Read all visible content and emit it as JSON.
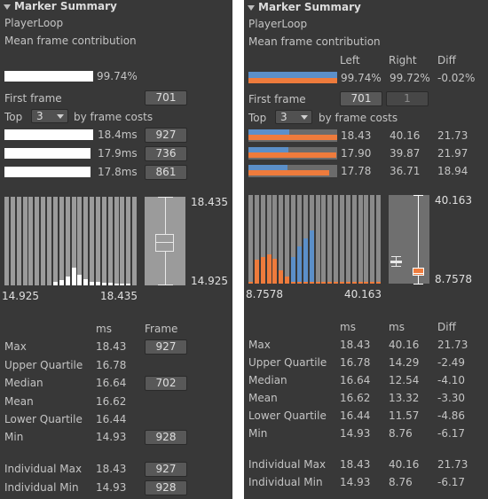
{
  "colors": {
    "panel_bg": "#383838",
    "button_bg": "#585858",
    "white_bar": "#ffffff",
    "blue": "#5b8fc9",
    "orange": "#ee7b3c",
    "grey_bar": "#6b6b6b",
    "hist_bg": "#9b9b9b"
  },
  "left": {
    "header": "Marker Summary",
    "marker_name": "PlayerLoop",
    "contribution_label": "Mean frame contribution",
    "contribution_value": "99.74%",
    "contribution_fraction": 0.9974,
    "first_frame_label": "First frame",
    "first_frame_value": "701",
    "top_label": "Top",
    "top_value": "3",
    "by_frame_costs_label": "by frame costs",
    "top_frames": [
      {
        "time": "18.4ms",
        "frame": "927",
        "fraction": 1.0
      },
      {
        "time": "17.9ms",
        "frame": "736",
        "fraction": 0.973
      },
      {
        "time": "17.8ms",
        "frame": "861",
        "fraction": 0.966
      }
    ],
    "hist_max_label": "18.435",
    "hist_min_label": "14.925",
    "hist_x_min": "14.925",
    "hist_x_max": "18.435",
    "hist_values": [
      0,
      0,
      0,
      0,
      0,
      0,
      0,
      0,
      0.04,
      0.06,
      0.1,
      0.2,
      0.12,
      0.07,
      0.04,
      0.04,
      0.03,
      0.03,
      0.02,
      0.02,
      0.01,
      0
    ],
    "box": {
      "min": 14.925,
      "q1": 16.44,
      "median": 16.64,
      "q3": 16.78,
      "max": 18.435,
      "range": [
        14.925,
        18.435
      ]
    },
    "stats_header_ms": "ms",
    "stats_header_frame": "Frame",
    "stats": [
      {
        "label": "Max",
        "ms": "18.43",
        "frame": "927"
      },
      {
        "label": "Upper Quartile",
        "ms": "16.78",
        "frame": ""
      },
      {
        "label": "Median",
        "ms": "16.64",
        "frame": "702"
      },
      {
        "label": "Mean",
        "ms": "16.62",
        "frame": ""
      },
      {
        "label": "Lower Quartile",
        "ms": "16.44",
        "frame": ""
      },
      {
        "label": "Min",
        "ms": "14.93",
        "frame": "928"
      }
    ],
    "individual": [
      {
        "label": "Individual Max",
        "ms": "18.43",
        "frame": "927"
      },
      {
        "label": "Individual Min",
        "ms": "14.93",
        "frame": "928"
      }
    ]
  },
  "right": {
    "header": "Marker Summary",
    "marker_name": "PlayerLoop",
    "contribution_label": "Mean frame contribution",
    "col_left": "Left",
    "col_right": "Right",
    "col_diff": "Diff",
    "contribution_left": "99.74%",
    "contribution_right": "99.72%",
    "contribution_diff": "-0.02%",
    "contribution_fractions": {
      "blue": 0.9974,
      "orange": 0.9972
    },
    "first_frame_label": "First frame",
    "first_frame_left": "701",
    "first_frame_right": "1",
    "top_label": "Top",
    "top_value": "3",
    "by_frame_costs_label": "by frame costs",
    "top_frames": [
      {
        "left": "18.43",
        "right": "40.16",
        "diff": "21.73",
        "blue_fraction": 0.46,
        "orange_fraction": 1.0
      },
      {
        "left": "17.90",
        "right": "39.87",
        "diff": "21.97",
        "blue_fraction": 0.45,
        "orange_fraction": 0.99
      },
      {
        "left": "17.78",
        "right": "36.71",
        "diff": "18.94",
        "blue_fraction": 0.44,
        "orange_fraction": 0.91
      }
    ],
    "hist_max_label": "40.163",
    "hist_min_label": "8.7578",
    "hist_x_min": "8.7578",
    "hist_x_max": "40.163",
    "hist_blue": [
      0,
      0,
      0,
      0,
      0,
      0,
      0,
      0.3,
      0.42,
      0.51,
      0.6,
      0,
      0,
      0,
      0,
      0,
      0,
      0,
      0,
      0,
      0,
      0
    ],
    "hist_orange": [
      0,
      0.27,
      0.3,
      0.33,
      0.28,
      0.15,
      0.08,
      0.05,
      0.02,
      0,
      0,
      0,
      0,
      0,
      0,
      0,
      0,
      0,
      0,
      0,
      0,
      0
    ],
    "box_left": {
      "min": 14.925,
      "q1": 16.44,
      "median": 16.64,
      "q3": 16.78,
      "max": 18.435
    },
    "box_right": {
      "min": 8.7578,
      "q1": 11.57,
      "median": 12.54,
      "q3": 14.29,
      "max": 40.163
    },
    "box_range": [
      8.7578,
      40.163
    ],
    "stats_header": [
      "ms",
      "ms",
      "Diff"
    ],
    "stats": [
      {
        "label": "Max",
        "left": "18.43",
        "right": "40.16",
        "diff": "21.73"
      },
      {
        "label": "Upper Quartile",
        "left": "16.78",
        "right": "14.29",
        "diff": "-2.49"
      },
      {
        "label": "Median",
        "left": "16.64",
        "right": "12.54",
        "diff": "-4.10"
      },
      {
        "label": "Mean",
        "left": "16.62",
        "right": "13.32",
        "diff": "-3.30"
      },
      {
        "label": "Lower Quartile",
        "left": "16.44",
        "right": "11.57",
        "diff": "-4.86"
      },
      {
        "label": "Min",
        "left": "14.93",
        "right": "8.76",
        "diff": "-6.17"
      }
    ],
    "individual": [
      {
        "label": "Individual Max",
        "left": "18.43",
        "right": "40.16",
        "diff": "21.73"
      },
      {
        "label": "Individual Min",
        "left": "14.93",
        "right": "8.76",
        "diff": "-6.17"
      }
    ]
  }
}
